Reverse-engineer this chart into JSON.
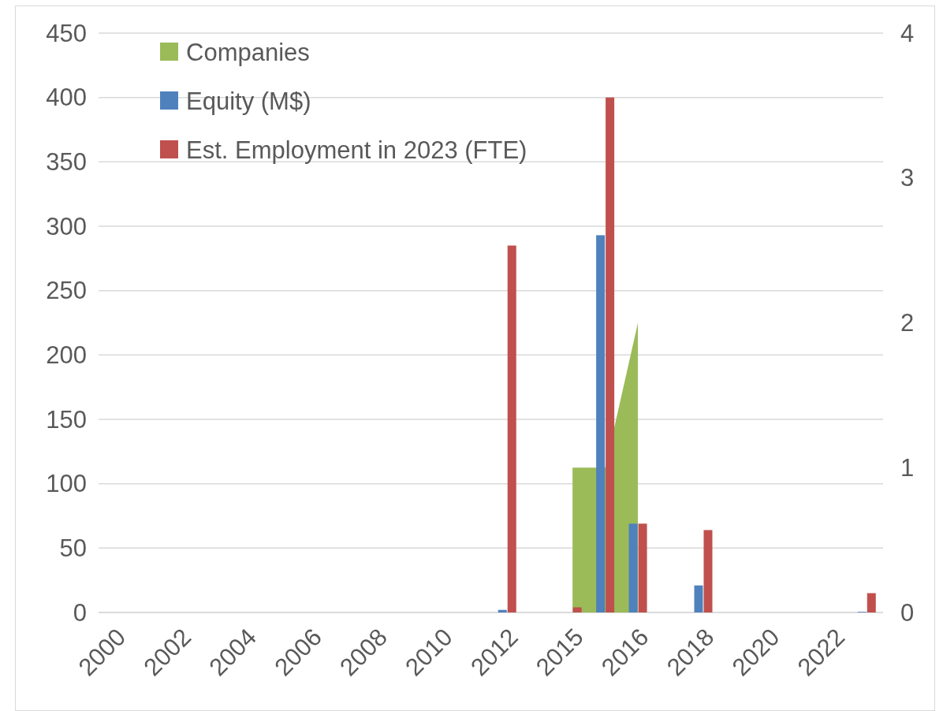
{
  "chart_data": {
    "type": "bar",
    "categories": [
      "2000",
      null,
      "2002",
      null,
      "2004",
      null,
      "2006",
      null,
      "2008",
      null,
      "2010",
      null,
      "2012",
      null,
      "2015",
      null,
      "2016",
      null,
      "2018",
      null,
      "2020",
      null,
      "2022",
      null
    ],
    "series": [
      {
        "name": "Companies",
        "type": "area",
        "axis": "y2",
        "color": "#9bbb59",
        "values": [
          null,
          null,
          null,
          null,
          null,
          null,
          null,
          null,
          null,
          null,
          null,
          null,
          null,
          null,
          1,
          1,
          2,
          null,
          null,
          null,
          null,
          null,
          null,
          null
        ]
      },
      {
        "name": "Equity (M$)",
        "color": "#4f81bd",
        "values": [
          null,
          null,
          null,
          null,
          null,
          null,
          null,
          null,
          null,
          null,
          null,
          null,
          2,
          null,
          null,
          293,
          69,
          null,
          21,
          null,
          null,
          null,
          null,
          0.5
        ]
      },
      {
        "name": "Est. Employment in 2023 (FTE)",
        "color": "#c0504d",
        "values": [
          null,
          null,
          null,
          null,
          null,
          null,
          null,
          null,
          null,
          null,
          null,
          null,
          285,
          null,
          4,
          400,
          69,
          null,
          64,
          null,
          null,
          null,
          null,
          15
        ]
      }
    ],
    "ylim": [
      0,
      450
    ],
    "yticks": [
      0,
      50,
      100,
      150,
      200,
      250,
      300,
      350,
      400,
      450
    ],
    "y2lim": [
      0,
      4
    ],
    "y2ticks": [
      0,
      1,
      2,
      3,
      4
    ],
    "grid": "y",
    "legend": "top left"
  }
}
